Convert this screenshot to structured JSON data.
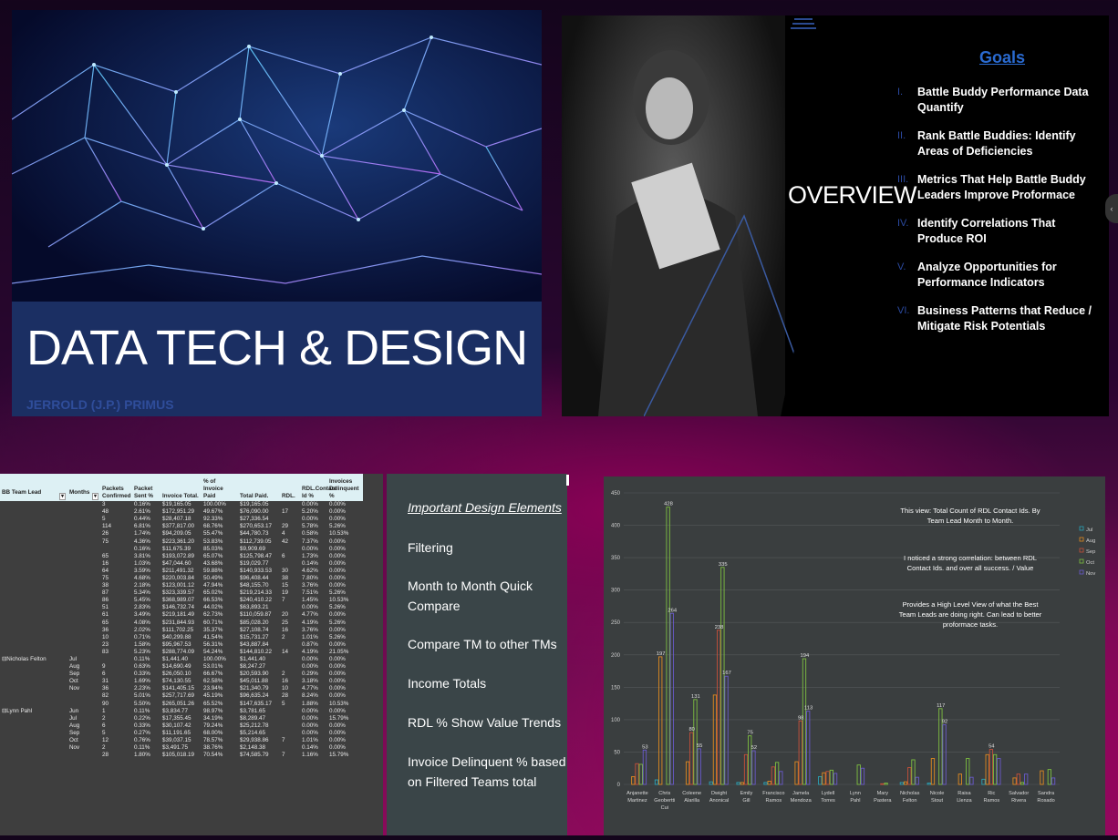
{
  "slide1": {
    "title": "DATA TECH & DESIGN",
    "author": "JERROLD (J.P.) PRIMUS"
  },
  "slide2": {
    "heading": "OVERVIEW",
    "goals_title": "Goals",
    "goals": [
      {
        "num": "I.",
        "text": "Battle Buddy Performance Data Quantify"
      },
      {
        "num": "II.",
        "text": "Rank Battle Buddies: Identify Areas of Deficiencies"
      },
      {
        "num": "III.",
        "text": "Metrics That Help Battle Buddy Leaders Improve Proformace"
      },
      {
        "num": "IV.",
        "text": "Identify Correlations That Produce ROI"
      },
      {
        "num": "V.",
        "text": "Analyze Opportunities for Performance Indicators"
      },
      {
        "num": "VI.",
        "text": "Business Patterns that Reduce / Mitigate Risk Potentials"
      }
    ]
  },
  "table": {
    "headers": [
      "BB Team Lead",
      "Months",
      "Packets Confirmed",
      "Packet Sent %",
      "Invoice Total.",
      "% of Invoice Paid",
      "Total Paid.",
      "RDL.",
      "RDL.Contact Id %",
      "Invoices Delinquent %"
    ],
    "rows": [
      [
        "",
        "",
        "3",
        "0.16%",
        "$19,165.05",
        "100.00%",
        "$19,165.05",
        "",
        "0.00%",
        "0.00%"
      ],
      [
        "",
        "",
        "48",
        "2.61%",
        "$172,951.29",
        "49.67%",
        "$76,090.00",
        "17",
        "5.20%",
        "0.00%"
      ],
      [
        "",
        "",
        "5",
        "0.44%",
        "$28,407.18",
        "92.33%",
        "$27,336.54",
        "",
        "0.00%",
        "0.00%"
      ],
      [
        "",
        "",
        "114",
        "6.81%",
        "$377,817.00",
        "68.76%",
        "$270,653.17",
        "29",
        "5.78%",
        "5.26%"
      ],
      [
        "",
        "",
        "26",
        "1.74%",
        "$94,209.05",
        "55.47%",
        "$44,780.73",
        "4",
        "0.58%",
        "10.53%"
      ],
      [
        "",
        "",
        "75",
        "4.36%",
        "$223,361.20",
        "53.83%",
        "$112,739.05",
        "42",
        "7.37%",
        "0.00%"
      ],
      [
        "",
        "",
        "",
        "0.16%",
        "$11,675.39",
        "85.03%",
        "$9,909.69",
        "",
        "0.00%",
        "0.00%"
      ],
      [
        "",
        "",
        "65",
        "3.81%",
        "$193,072.89",
        "65.07%",
        "$125,798.47",
        "6",
        "1.73%",
        "0.00%"
      ],
      [
        "",
        "",
        "16",
        "1.03%",
        "$47,044.60",
        "43.68%",
        "$19,029.77",
        "",
        "0.14%",
        "0.00%"
      ],
      [
        "",
        "",
        "64",
        "3.59%",
        "$211,491.32",
        "59.88%",
        "$140,933.53",
        "30",
        "4.62%",
        "0.00%"
      ],
      [
        "",
        "",
        "75",
        "4.68%",
        "$220,003.84",
        "50.49%",
        "$96,408.44",
        "38",
        "7.80%",
        "0.00%"
      ],
      [
        "",
        "",
        "38",
        "2.18%",
        "$123,001.12",
        "47.94%",
        "$48,155.70",
        "15",
        "3.76%",
        "0.00%"
      ],
      [
        "",
        "",
        "87",
        "5.34%",
        "$323,339.57",
        "65.02%",
        "$219,214.33",
        "19",
        "7.51%",
        "5.26%"
      ],
      [
        "",
        "",
        "86",
        "5.45%",
        "$368,989.07",
        "66.53%",
        "$240,410.22",
        "7",
        "1.45%",
        "10.53%"
      ],
      [
        "",
        "",
        "51",
        "2.83%",
        "$146,732.74",
        "44.02%",
        "$63,893.21",
        "",
        "0.00%",
        "5.26%"
      ],
      [
        "",
        "",
        "61",
        "3.49%",
        "$219,181.49",
        "62.73%",
        "$110,059.87",
        "20",
        "4.77%",
        "0.00%"
      ],
      [
        "",
        "",
        "65",
        "4.08%",
        "$231,844.93",
        "60.71%",
        "$85,028.20",
        "25",
        "4.19%",
        "5.26%"
      ],
      [
        "",
        "",
        "36",
        "2.02%",
        "$111,702.25",
        "35.37%",
        "$27,108.74",
        "16",
        "3.76%",
        "0.00%"
      ],
      [
        "",
        "",
        "10",
        "0.71%",
        "$40,299.88",
        "41.54%",
        "$15,731.27",
        "2",
        "1.01%",
        "5.26%"
      ],
      [
        "",
        "",
        "23",
        "1.58%",
        "$95,967.53",
        "56.31%",
        "$43,887.84",
        "",
        "0.87%",
        "0.00%"
      ],
      [
        "",
        "",
        "83",
        "5.23%",
        "$288,774.09",
        "54.24%",
        "$144,810.22",
        "14",
        "4.19%",
        "21.05%"
      ],
      [
        "⊟Nicholas Felton",
        "Jul",
        "",
        "0.11%",
        "$1,441.40",
        "100.00%",
        "$1,441.40",
        "",
        "0.00%",
        "0.00%"
      ],
      [
        "",
        "Aug",
        "9",
        "0.63%",
        "$14,690.49",
        "53.01%",
        "$8,247.27",
        "",
        "0.00%",
        "0.00%"
      ],
      [
        "",
        "Sep",
        "6",
        "0.33%",
        "$26,050.10",
        "66.67%",
        "$20,593.90",
        "2",
        "0.29%",
        "0.00%"
      ],
      [
        "",
        "Oct",
        "31",
        "1.69%",
        "$74,130.55",
        "62.58%",
        "$45,011.88",
        "16",
        "3.18%",
        "0.00%"
      ],
      [
        "",
        "Nov",
        "36",
        "2.23%",
        "$141,405.15",
        "23.94%",
        "$21,340.79",
        "10",
        "4.77%",
        "0.00%"
      ],
      [
        "",
        "",
        "82",
        "5.01%",
        "$257,717.69",
        "45.19%",
        "$96,635.24",
        "28",
        "8.24%",
        "0.00%"
      ],
      [
        "",
        "",
        "90",
        "5.50%",
        "$265,051.26",
        "65.52%",
        "$147,635.17",
        "5",
        "1.88%",
        "10.53%"
      ],
      [
        "⊟Lynn Pahl",
        "Jun",
        "1",
        "0.11%",
        "$3,834.77",
        "98.97%",
        "$3,781.65",
        "",
        "0.00%",
        "0.00%"
      ],
      [
        "",
        "Jul",
        "2",
        "0.22%",
        "$17,355.45",
        "34.19%",
        "$8,289.47",
        "",
        "0.00%",
        "15.79%"
      ],
      [
        "",
        "Aug",
        "6",
        "0.33%",
        "$30,107.42",
        "79.24%",
        "$25,212.78",
        "",
        "0.00%",
        "0.00%"
      ],
      [
        "",
        "Sep",
        "5",
        "0.27%",
        "$11,191.65",
        "68.00%",
        "$5,214.65",
        "",
        "0.00%",
        "0.00%"
      ],
      [
        "",
        "Oct",
        "12",
        "0.76%",
        "$39,037.15",
        "78.57%",
        "$29,938.86",
        "7",
        "1.01%",
        "0.00%"
      ],
      [
        "",
        "Nov",
        "2",
        "0.11%",
        "$3,491.75",
        "38.76%",
        "$2,148.38",
        "",
        "0.14%",
        "0.00%"
      ],
      [
        "",
        "",
        "28",
        "1.80%",
        "$105,018.19",
        "70.54%",
        "$74,585.79",
        "7",
        "1.16%",
        "15.79%"
      ]
    ]
  },
  "notes": {
    "heading": "Important Design Elements",
    "items": [
      "Filtering",
      "Month to Month Quick Compare",
      "Compare TM to other TMs",
      "Income Totals",
      "RDL % Show Value Trends",
      "Invoice Delinquent % based on Filtered Teams total"
    ]
  },
  "chart_data": {
    "type": "bar",
    "categories": [
      "Anjanette Martinez",
      "Chris Geobertti Cui",
      "Coleene Alarilla",
      "Dwight Anonical",
      "Emily Gill",
      "Francisco Ramos",
      "Jamela Mendoza",
      "Lydell Torres",
      "Lynn Pahl",
      "Mary Pastera",
      "Nicholas Felton",
      "Nicole Stout",
      "Raisa Llenza",
      "Ric Ramos",
      "Salvador Rivera",
      "Sandra Rosado"
    ],
    "series": [
      {
        "name": "Jul",
        "color": "#2aa4b8",
        "values": [
          0,
          7,
          0,
          4,
          3,
          3,
          0,
          12,
          0,
          0,
          3,
          2,
          0,
          8,
          0,
          0
        ]
      },
      {
        "name": "Aug",
        "color": "#e08a20",
        "values": [
          12,
          197,
          35,
          138,
          3,
          5,
          35,
          18,
          0,
          0,
          4,
          40,
          16,
          46,
          10,
          21
        ]
      },
      {
        "name": "Sep",
        "color": "#c8503a",
        "values": [
          32,
          0,
          80,
          238,
          46,
          27,
          98,
          20,
          0,
          1,
          26,
          0,
          0,
          54,
          16,
          0
        ]
      },
      {
        "name": "Oct",
        "color": "#7ec040",
        "values": [
          31,
          428,
          131,
          335,
          75,
          34,
          194,
          22,
          30,
          2,
          38,
          117,
          40,
          46,
          3,
          23
        ]
      },
      {
        "name": "Nov",
        "color": "#6a5acd",
        "values": [
          53,
          264,
          55,
          167,
          52,
          20,
          113,
          17,
          25,
          0,
          11,
          92,
          11,
          40,
          16,
          10
        ]
      }
    ],
    "data_labels": [
      {
        "series": "Oct",
        "category": "Chris Geobertti Cui",
        "text": "428"
      },
      {
        "series": "Oct",
        "category": "Dwight Anonical",
        "text": "335"
      },
      {
        "series": "Nov",
        "category": "Chris Geobertti Cui",
        "text": "264"
      },
      {
        "series": "Sep",
        "category": "Dwight Anonical",
        "text": "238"
      },
      {
        "series": "Aug",
        "category": "Chris Geobertti Cui",
        "text": "197"
      },
      {
        "series": "Oct",
        "category": "Jamela Mendoza",
        "text": "194"
      },
      {
        "series": "Nov",
        "category": "Dwight Anonical",
        "text": "167"
      },
      {
        "series": "Oct",
        "category": "Coleene Alarilla",
        "text": "131"
      },
      {
        "series": "Oct",
        "category": "Nicole Stout",
        "text": "117"
      },
      {
        "series": "Nov",
        "category": "Jamela Mendoza",
        "text": "113"
      },
      {
        "series": "Sep",
        "category": "Jamela Mendoza",
        "text": "98"
      },
      {
        "series": "Nov",
        "category": "Nicole Stout",
        "text": "92"
      },
      {
        "series": "Sep",
        "category": "Coleene Alarilla",
        "text": "80"
      },
      {
        "series": "Oct",
        "category": "Emily Gill",
        "text": "75"
      },
      {
        "series": "Nov",
        "category": "Coleene Alarilla",
        "text": "55"
      },
      {
        "series": "Nov",
        "category": "Anjanette Martinez",
        "text": "53"
      },
      {
        "series": "Sep",
        "category": "Ric Ramos",
        "text": "54"
      },
      {
        "series": "Nov",
        "category": "Emily Gill",
        "text": "52"
      }
    ],
    "ylim": [
      0,
      450
    ],
    "yticks": [
      0,
      50,
      100,
      150,
      200,
      250,
      300,
      350,
      400,
      450
    ],
    "legend": "right",
    "annotations": [
      "This view: Total Count of RDL Contact Ids. By Team Lead Month to Month.",
      "I noticed a strong correlation: between RDL Contact Ids. and over all success. / Value",
      "Provides a High Level View of what the Best Team Leads are doing right. Can lead to better proformace tasks."
    ]
  }
}
